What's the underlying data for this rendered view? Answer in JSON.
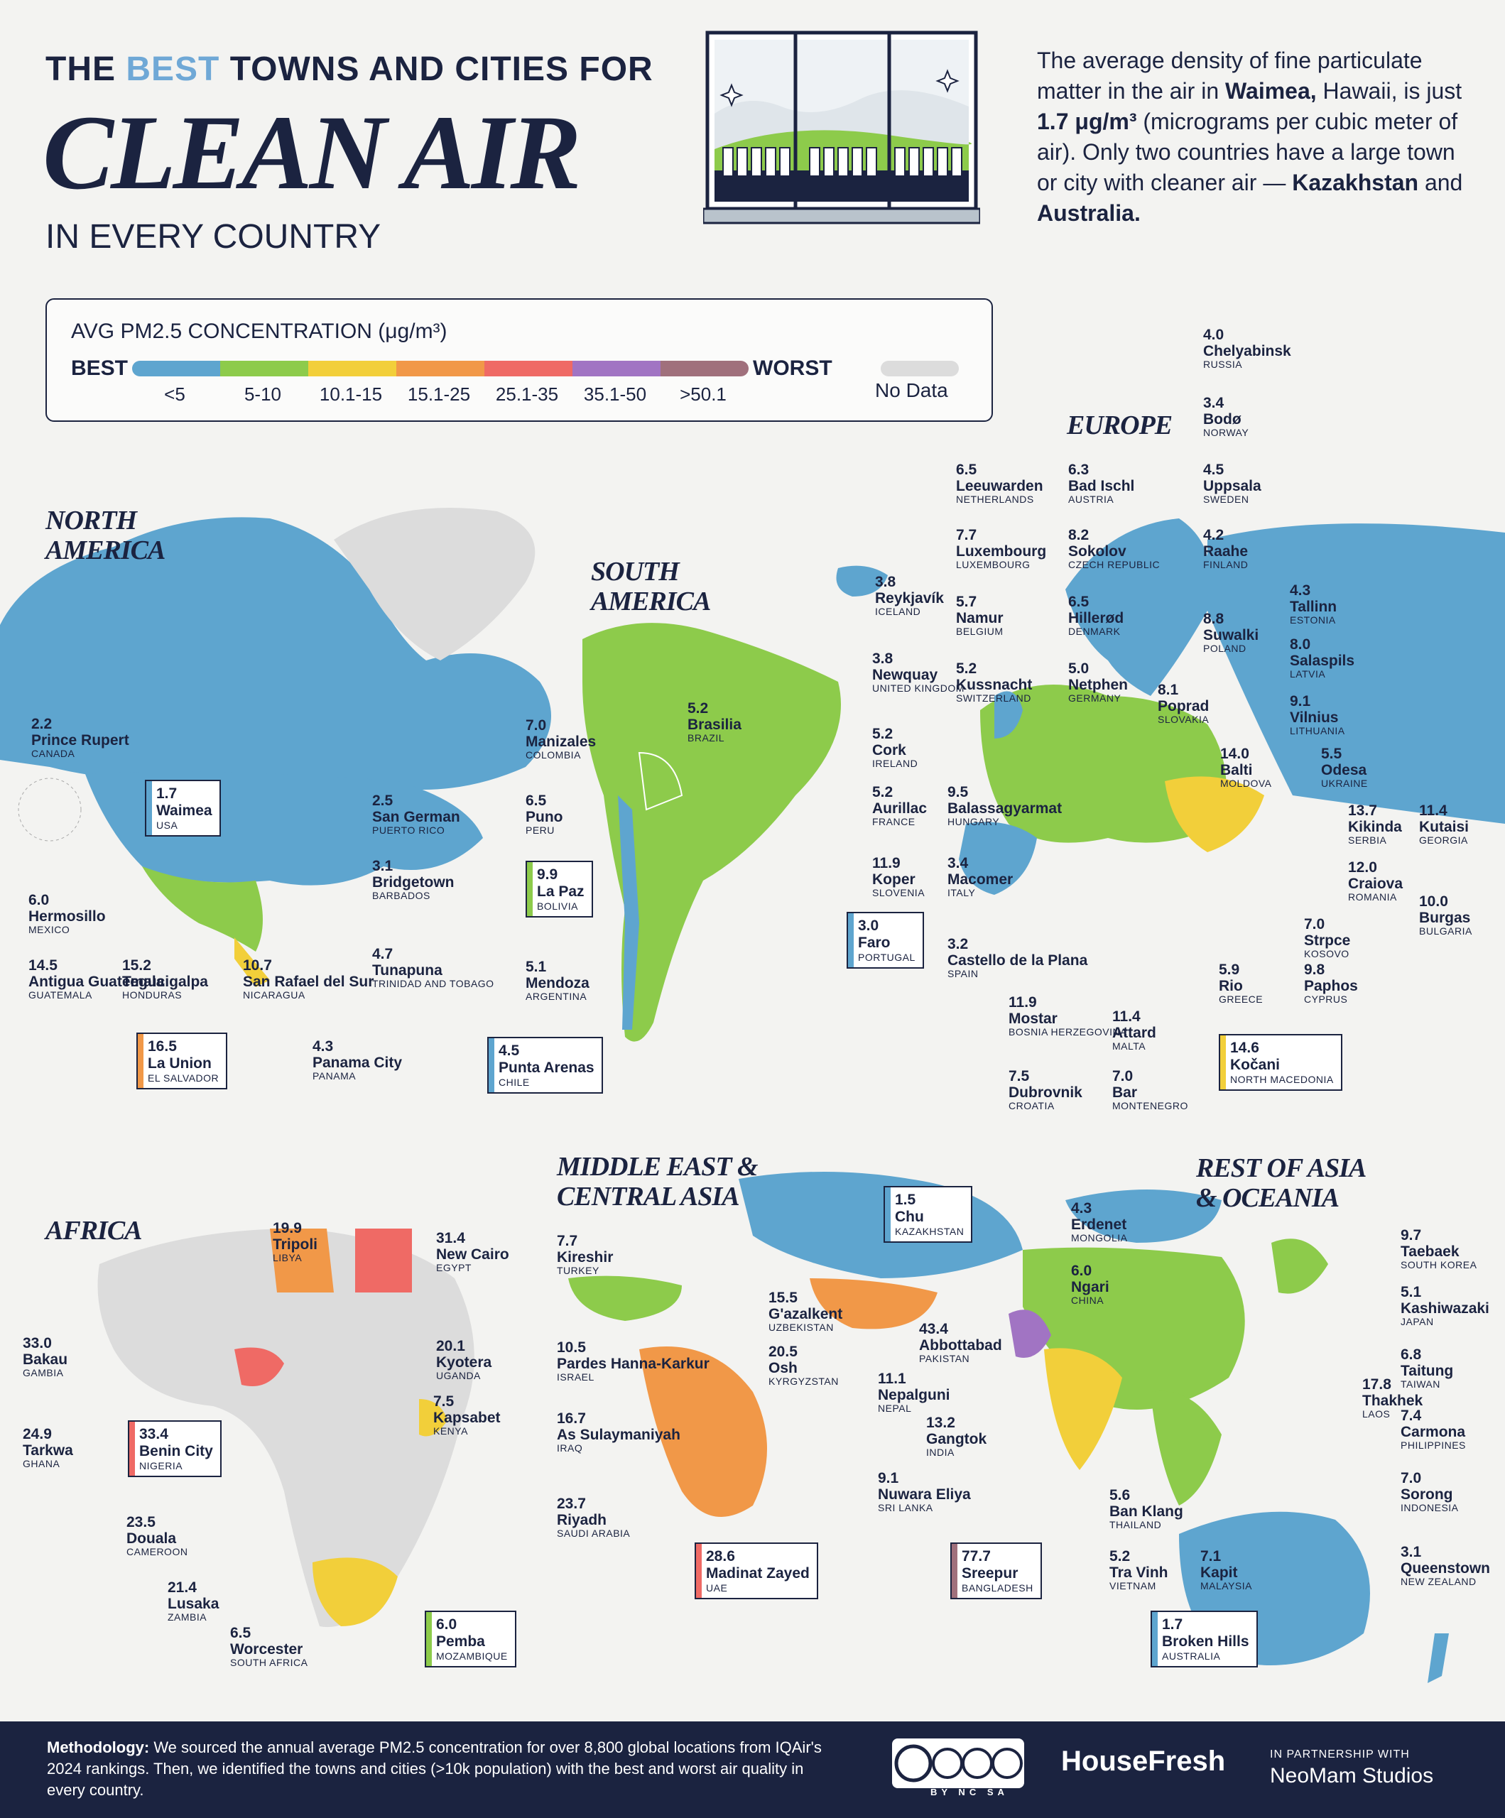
{
  "header": {
    "title_pre": "THE",
    "title_highlight": "BEST",
    "title_post": "TOWNS AND CITIES FOR",
    "title_main": "CLEAN AIR",
    "title_sub": "IN EVERY COUNTRY"
  },
  "intro": {
    "p1": "The average density of fine particulate matter in the air in ",
    "city": "Waimea,",
    "p2": " Hawaii, is just ",
    "value": "1.7 μg/m³",
    "p3": " (micrograms per cubic meter of air). Only two countries have a large town or city with cleaner air — ",
    "country1": "Kazakhstan",
    "p4": " and ",
    "country2": "Australia."
  },
  "legend": {
    "title": "AVG PM2.5 CONCENTRATION (μg/m³)",
    "best": "BEST",
    "worst": "WORST",
    "no_data": "No Data",
    "bins": [
      {
        "label": "<5",
        "color": "#5ea5cf"
      },
      {
        "label": "5-10",
        "color": "#8dcb4b"
      },
      {
        "label": "10.1-15",
        "color": "#f2cf3a"
      },
      {
        "label": "15.1-25",
        "color": "#f19848"
      },
      {
        "label": "25.1-35",
        "color": "#ef6a65"
      },
      {
        "label": "35.1-50",
        "color": "#a174c3"
      },
      {
        "label": ">50.1",
        "color": "#a0707c"
      }
    ],
    "no_data_color": "#dcdcdc"
  },
  "regions": {
    "north_america": "NORTH AMERICA",
    "south_america": "SOUTH AMERICA",
    "europe": "EUROPE",
    "africa": "AFRICA",
    "middle_east": "MIDDLE EAST & CENTRAL ASIA",
    "asia_oceania": "REST OF ASIA & OCEANIA"
  },
  "cities": {
    "prince_rupert": {
      "value": "2.2",
      "name": "Prince Rupert",
      "country": "CANADA"
    },
    "waimea": {
      "value": "1.7",
      "name": "Waimea",
      "country": "USA"
    },
    "san_german": {
      "value": "2.5",
      "name": "San German",
      "country": "PUERTO RICO"
    },
    "bridgetown": {
      "value": "3.1",
      "name": "Bridgetown",
      "country": "BARBADOS"
    },
    "hermosillo": {
      "value": "6.0",
      "name": "Hermosillo",
      "country": "MEXICO"
    },
    "tunapuna": {
      "value": "4.7",
      "name": "Tunapuna",
      "country": "TRINIDAD AND TOBAGO"
    },
    "antigua": {
      "value": "14.5",
      "name": "Antigua Guatemala",
      "country": "GUATEMALA"
    },
    "tegucigalpa": {
      "value": "15.2",
      "name": "Tegucigalpa",
      "country": "HONDURAS"
    },
    "san_rafael": {
      "value": "10.7",
      "name": "San Rafael del Sur",
      "country": "NICARAGUA"
    },
    "panama_city": {
      "value": "4.3",
      "name": "Panama City",
      "country": "PANAMA"
    },
    "la_union": {
      "value": "16.5",
      "name": "La Union",
      "country": "EL SALVADOR"
    },
    "manizales": {
      "value": "7.0",
      "name": "Manizales",
      "country": "COLOMBIA"
    },
    "brasilia": {
      "value": "5.2",
      "name": "Brasilia",
      "country": "BRAZIL"
    },
    "puno": {
      "value": "6.5",
      "name": "Puno",
      "country": "PERU"
    },
    "la_paz": {
      "value": "9.9",
      "name": "La Paz",
      "country": "BOLIVIA"
    },
    "mendoza": {
      "value": "5.1",
      "name": "Mendoza",
      "country": "ARGENTINA"
    },
    "punta_arenas": {
      "value": "4.5",
      "name": "Punta Arenas",
      "country": "CHILE"
    },
    "chelyabinsk": {
      "value": "4.0",
      "name": "Chelyabinsk",
      "country": "RUSSIA"
    },
    "bodo": {
      "value": "3.4",
      "name": "Bodø",
      "country": "NORWAY"
    },
    "leeuwarden": {
      "value": "6.5",
      "name": "Leeuwarden",
      "country": "NETHERLANDS"
    },
    "bad_ischl": {
      "value": "6.3",
      "name": "Bad Ischl",
      "country": "AUSTRIA"
    },
    "uppsala": {
      "value": "4.5",
      "name": "Uppsala",
      "country": "SWEDEN"
    },
    "luxembourg": {
      "value": "7.7",
      "name": "Luxembourg",
      "country": "LUXEMBOURG"
    },
    "sokolov": {
      "value": "8.2",
      "name": "Sokolov",
      "country": "CZECH REPUBLIC"
    },
    "raahe": {
      "value": "4.2",
      "name": "Raahe",
      "country": "FINLAND"
    },
    "reykjavik": {
      "value": "3.8",
      "name": "Reykjavík",
      "country": "ICELAND"
    },
    "namur": {
      "value": "5.7",
      "name": "Namur",
      "country": "BELGIUM"
    },
    "hillerod": {
      "value": "6.5",
      "name": "Hillerød",
      "country": "DENMARK"
    },
    "tallinn": {
      "value": "4.3",
      "name": "Tallinn",
      "country": "ESTONIA"
    },
    "suwalki": {
      "value": "8.8",
      "name": "Suwalki",
      "country": "POLAND"
    },
    "newquay": {
      "value": "3.8",
      "name": "Newquay",
      "country": "UNITED KINGDOM"
    },
    "kussnacht": {
      "value": "5.2",
      "name": "Kussnacht",
      "country": "SWITZERLAND"
    },
    "netphen": {
      "value": "5.0",
      "name": "Netphen",
      "country": "GERMANY"
    },
    "salaspils": {
      "value": "8.0",
      "name": "Salaspils",
      "country": "LATVIA"
    },
    "poprad": {
      "value": "8.1",
      "name": "Poprad",
      "country": "SLOVAKIA"
    },
    "vilnius": {
      "value": "9.1",
      "name": "Vilnius",
      "country": "LITHUANIA"
    },
    "cork": {
      "value": "5.2",
      "name": "Cork",
      "country": "IRELAND"
    },
    "balti": {
      "value": "14.0",
      "name": "Balti",
      "country": "MOLDOVA"
    },
    "odesa": {
      "value": "5.5",
      "name": "Odesa",
      "country": "UKRAINE"
    },
    "aurillac": {
      "value": "5.2",
      "name": "Aurillac",
      "country": "FRANCE"
    },
    "balassagyarmat": {
      "value": "9.5",
      "name": "Balassagyarmat",
      "country": "HUNGARY"
    },
    "kikinda": {
      "value": "13.7",
      "name": "Kikinda",
      "country": "SERBIA"
    },
    "kutaisi": {
      "value": "11.4",
      "name": "Kutaisi",
      "country": "GEORGIA"
    },
    "koper": {
      "value": "11.9",
      "name": "Koper",
      "country": "SLOVENIA"
    },
    "macomer": {
      "value": "3.4",
      "name": "Macomer",
      "country": "ITALY"
    },
    "craiova": {
      "value": "12.0",
      "name": "Craiova",
      "country": "ROMANIA"
    },
    "faro": {
      "value": "3.0",
      "name": "Faro",
      "country": "PORTUGAL"
    },
    "burgas": {
      "value": "10.0",
      "name": "Burgas",
      "country": "BULGARIA"
    },
    "castello": {
      "value": "3.2",
      "name": "Castello de la Plana",
      "country": "SPAIN"
    },
    "strpce": {
      "value": "7.0",
      "name": "Strpce",
      "country": "KOSOVO"
    },
    "rio": {
      "value": "5.9",
      "name": "Rio",
      "country": "GREECE"
    },
    "paphos": {
      "value": "9.8",
      "name": "Paphos",
      "country": "CYPRUS"
    },
    "mostar": {
      "value": "11.9",
      "name": "Mostar",
      "country": "BOSNIA HERZEGOVINA"
    },
    "attard": {
      "value": "11.4",
      "name": "Attard",
      "country": "MALTA"
    },
    "kocani": {
      "value": "14.6",
      "name": "Kočani",
      "country": "NORTH MACEDONIA"
    },
    "dubrovnik": {
      "value": "7.5",
      "name": "Dubrovnik",
      "country": "CROATIA"
    },
    "bar": {
      "value": "7.0",
      "name": "Bar",
      "country": "MONTENEGRO"
    },
    "tripoli": {
      "value": "19.9",
      "name": "Tripoli",
      "country": "LIBYA"
    },
    "new_cairo": {
      "value": "31.4",
      "name": "New Cairo",
      "country": "EGYPT"
    },
    "bakau": {
      "value": "33.0",
      "name": "Bakau",
      "country": "GAMBIA"
    },
    "kyotera": {
      "value": "20.1",
      "name": "Kyotera",
      "country": "UGANDA"
    },
    "kapsabet": {
      "value": "7.5",
      "name": "Kapsabet",
      "country": "KENYA"
    },
    "tarkwa": {
      "value": "24.9",
      "name": "Tarkwa",
      "country": "GHANA"
    },
    "benin_city": {
      "value": "33.4",
      "name": "Benin City",
      "country": "NIGERIA"
    },
    "douala": {
      "value": "23.5",
      "name": "Douala",
      "country": "CAMEROON"
    },
    "lusaka": {
      "value": "21.4",
      "name": "Lusaka",
      "country": "ZAMBIA"
    },
    "worcester": {
      "value": "6.5",
      "name": "Worcester",
      "country": "SOUTH AFRICA"
    },
    "pemba": {
      "value": "6.0",
      "name": "Pemba",
      "country": "MOZAMBIQUE"
    },
    "kireshir": {
      "value": "7.7",
      "name": "Kireshir",
      "country": "TURKEY"
    },
    "chu": {
      "value": "1.5",
      "name": "Chu",
      "country": "KAZAKHSTAN"
    },
    "gazalkent": {
      "value": "15.5",
      "name": "G'azalkent",
      "country": "UZBEKISTAN"
    },
    "pardes": {
      "value": "10.5",
      "name": "Pardes Hanna-Karkur",
      "country": "ISRAEL"
    },
    "osh": {
      "value": "20.5",
      "name": "Osh",
      "country": "KYRGYZSTAN"
    },
    "as_sulaymaniyah": {
      "value": "16.7",
      "name": "As Sulaymaniyah",
      "country": "IRAQ"
    },
    "riyadh": {
      "value": "23.7",
      "name": "Riyadh",
      "country": "SAUDI ARABIA"
    },
    "madinat_zayed": {
      "value": "28.6",
      "name": "Madinat Zayed",
      "country": "UAE"
    },
    "erdenet": {
      "value": "4.3",
      "name": "Erdenet",
      "country": "MONGOLIA"
    },
    "taebaek": {
      "value": "9.7",
      "name": "Taebaek",
      "country": "SOUTH KOREA"
    },
    "ngari": {
      "value": "6.0",
      "name": "Ngari",
      "country": "CHINA"
    },
    "kashiwazaki": {
      "value": "5.1",
      "name": "Kashiwazaki",
      "country": "JAPAN"
    },
    "abbottabad": {
      "value": "43.4",
      "name": "Abbottabad",
      "country": "PAKISTAN"
    },
    "taitung": {
      "value": "6.8",
      "name": "Taitung",
      "country": "TAIWAN"
    },
    "nepalguni": {
      "value": "11.1",
      "name": "Nepalguni",
      "country": "NEPAL"
    },
    "thakhek": {
      "value": "17.8",
      "name": "Thakhek",
      "country": "LAOS"
    },
    "gangtok": {
      "value": "13.2",
      "name": "Gangtok",
      "country": "INDIA"
    },
    "carmona": {
      "value": "7.4",
      "name": "Carmona",
      "country": "PHILIPPINES"
    },
    "nuwara_eliya": {
      "value": "9.1",
      "name": "Nuwara Eliya",
      "country": "SRI LANKA"
    },
    "ban_klang": {
      "value": "5.6",
      "name": "Ban Klang",
      "country": "THAILAND"
    },
    "sorong": {
      "value": "7.0",
      "name": "Sorong",
      "country": "INDONESIA"
    },
    "sreepur": {
      "value": "77.7",
      "name": "Sreepur",
      "country": "BANGLADESH"
    },
    "tra_vinh": {
      "value": "5.2",
      "name": "Tra Vinh",
      "country": "VIETNAM"
    },
    "kapit": {
      "value": "7.1",
      "name": "Kapit",
      "country": "MALAYSIA"
    },
    "queenstown": {
      "value": "3.1",
      "name": "Queenstown",
      "country": "NEW ZEALAND"
    },
    "broken_hills": {
      "value": "1.7",
      "name": "Broken Hills",
      "country": "AUSTRALIA"
    }
  },
  "footer": {
    "method_label": "Methodology:",
    "method_text": " We sourced the annual average PM2.5 concentration for over 8,800 global locations from IQAir's 2024 rankings. Then, we identified the towns and cities (>10k population) with the best and worst air quality in every country.",
    "cc_labels": "BY NC SA",
    "brand": "HouseFresh",
    "partner": "IN PARTNERSHIP WITH",
    "partner_name": "NeoMam Studios"
  }
}
